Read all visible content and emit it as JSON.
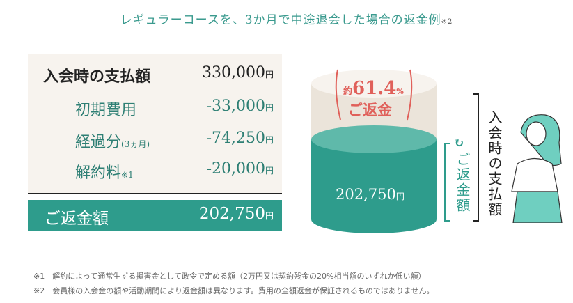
{
  "title": {
    "text": "レギュラーコースを、3か月で中途退会した場合の返金例",
    "note": "※2"
  },
  "table": {
    "rows": [
      {
        "label": "入会時の支払額",
        "label_note": "",
        "value": "330,000",
        "unit": "円"
      },
      {
        "label": "初期費用",
        "label_note": "",
        "value": "-33,000",
        "unit": "円"
      },
      {
        "label": "経過分",
        "label_note": "(3ヵ月)",
        "value": "-74,250",
        "unit": "円"
      },
      {
        "label": "解約料",
        "label_note": "※1",
        "value": "-20,000",
        "unit": "円"
      }
    ],
    "total": {
      "label": "ご返金額",
      "value": "202,750",
      "unit": "円"
    }
  },
  "graphic": {
    "badge_prefix": "約",
    "badge_percent": "61.4",
    "badge_percent_unit": "%",
    "badge_label": "ご返金",
    "refund_amount": "202,750",
    "refund_unit": "円",
    "refund_label": "ご返金額",
    "total_label": "入会時の支払額",
    "refund_ratio_percent": 61.4,
    "colors": {
      "teal": "#2e9c8c",
      "beige": "#ebe4da",
      "accent": "#e0605a"
    }
  },
  "footnotes": [
    "※1　解約によって通常生ずる損害金として政令で定める額（2万円又は契約残金の20%相当額のいずれか低い額）",
    "※2　会員様の入会金の額や活動期間により返金額は異なります。費用の全額返金が保証されるものではありません。"
  ]
}
